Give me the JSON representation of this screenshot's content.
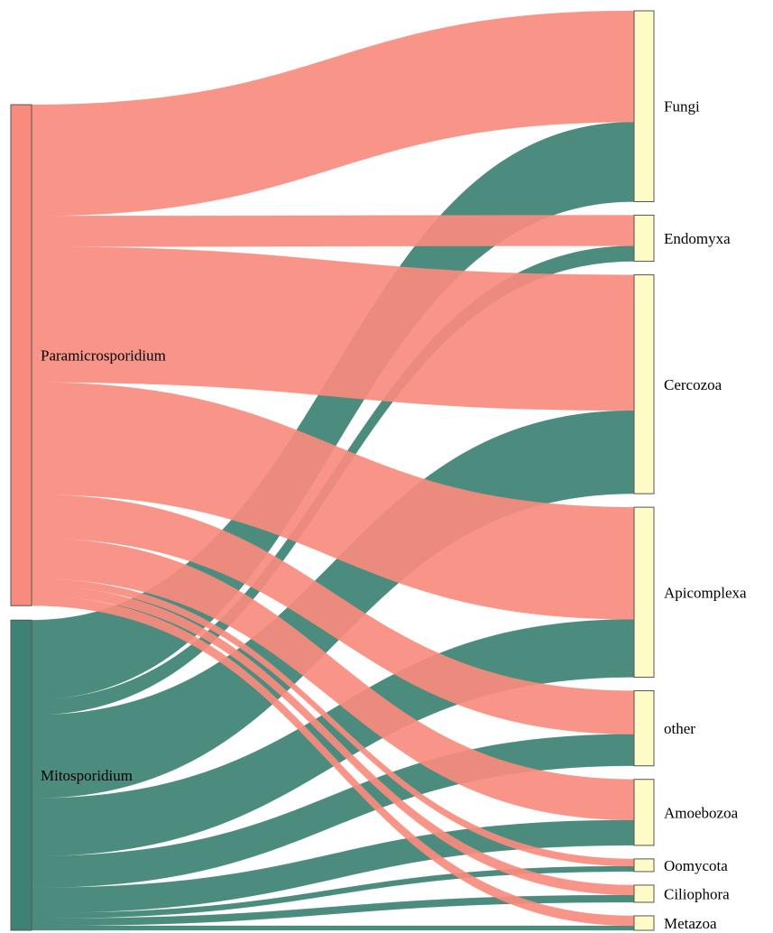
{
  "colors": {
    "paramicrosporidium": "#F98B7E",
    "mitosporidium": "#3D8274",
    "target_node": "#FFFBC7",
    "node_stroke": "#555555"
  },
  "sources": [
    {
      "id": "paramicrosporidium",
      "label": "Paramicrosporidium",
      "color_key": "paramicrosporidium"
    },
    {
      "id": "mitosporidium",
      "label": "Mitosporidium",
      "color_key": "mitosporidium"
    }
  ],
  "targets": [
    {
      "id": "fungi",
      "label": "Fungi"
    },
    {
      "id": "endomyxa",
      "label": "Endomyxa"
    },
    {
      "id": "cercozoa",
      "label": "Cercozoa"
    },
    {
      "id": "apicomplexa",
      "label": "Apicomplexa"
    },
    {
      "id": "other",
      "label": "other"
    },
    {
      "id": "amoebozoa",
      "label": "Amoebozoa"
    },
    {
      "id": "oomycota",
      "label": "Oomycota"
    },
    {
      "id": "ciliophora",
      "label": "Ciliophora"
    },
    {
      "id": "metazoa",
      "label": "Metazoa"
    }
  ],
  "links": [
    {
      "source": "paramicrosporidium",
      "target": "fungi",
      "value": 123
    },
    {
      "source": "paramicrosporidium",
      "target": "endomyxa",
      "value": 34
    },
    {
      "source": "paramicrosporidium",
      "target": "cercozoa",
      "value": 150
    },
    {
      "source": "paramicrosporidium",
      "target": "apicomplexa",
      "value": 124
    },
    {
      "source": "paramicrosporidium",
      "target": "other",
      "value": 48
    },
    {
      "source": "paramicrosporidium",
      "target": "amoebozoa",
      "value": 45
    },
    {
      "source": "paramicrosporidium",
      "target": "oomycota",
      "value": 8
    },
    {
      "source": "paramicrosporidium",
      "target": "ciliophora",
      "value": 11
    },
    {
      "source": "paramicrosporidium",
      "target": "metazoa",
      "value": 11
    },
    {
      "source": "mitosporidium",
      "target": "fungi",
      "value": 88
    },
    {
      "source": "mitosporidium",
      "target": "endomyxa",
      "value": 17
    },
    {
      "source": "mitosporidium",
      "target": "cercozoa",
      "value": 92
    },
    {
      "source": "mitosporidium",
      "target": "apicomplexa",
      "value": 64
    },
    {
      "source": "mitosporidium",
      "target": "other",
      "value": 35
    },
    {
      "source": "mitosporidium",
      "target": "amoebozoa",
      "value": 28
    },
    {
      "source": "mitosporidium",
      "target": "oomycota",
      "value": 6
    },
    {
      "source": "mitosporidium",
      "target": "ciliophora",
      "value": 8
    },
    {
      "source": "mitosporidium",
      "target": "metazoa",
      "value": 5
    }
  ]
}
